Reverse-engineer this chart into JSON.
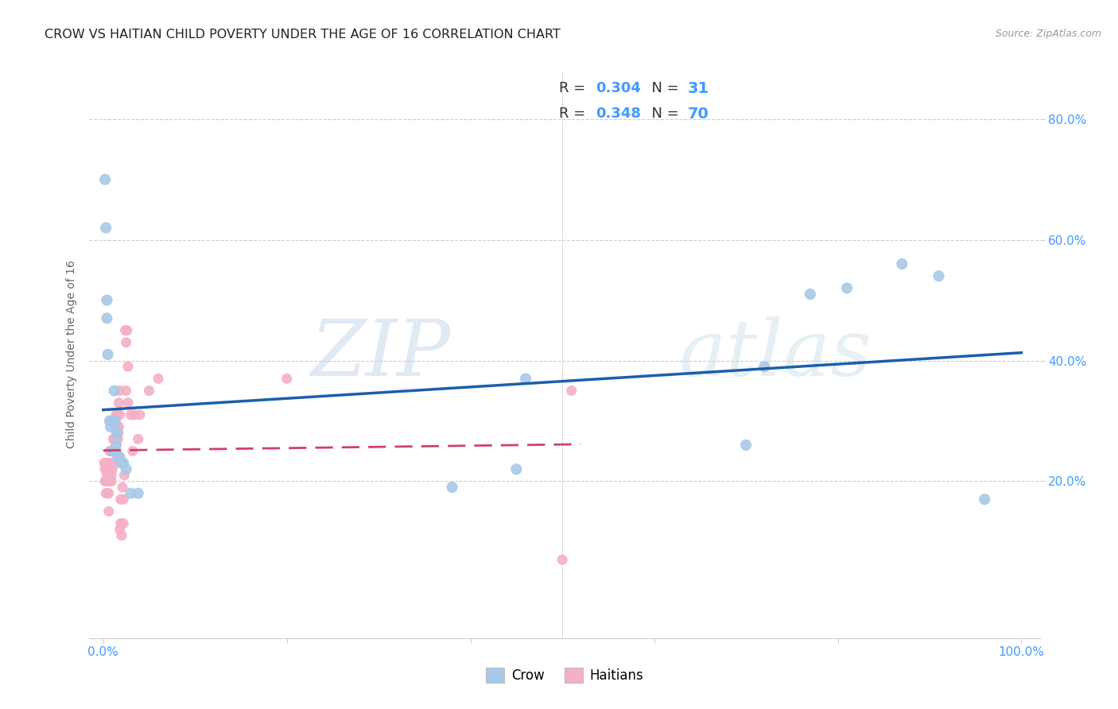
{
  "title": "CROW VS HAITIAN CHILD POVERTY UNDER THE AGE OF 16 CORRELATION CHART",
  "source": "Source: ZipAtlas.com",
  "ylabel": "Child Poverty Under the Age of 16",
  "crow_R": "0.304",
  "crow_N": "31",
  "haitian_R": "0.348",
  "haitian_N": "70",
  "crow_color": "#a8c8e8",
  "haitian_color": "#f5b0c5",
  "crow_line_color": "#1a5faa",
  "haitian_line_color": "#d04070",
  "crow_points": [
    [
      0.002,
      0.7
    ],
    [
      0.003,
      0.62
    ],
    [
      0.004,
      0.5
    ],
    [
      0.004,
      0.47
    ],
    [
      0.005,
      0.41
    ],
    [
      0.007,
      0.3
    ],
    [
      0.008,
      0.29
    ],
    [
      0.01,
      0.3
    ],
    [
      0.01,
      0.25
    ],
    [
      0.012,
      0.35
    ],
    [
      0.013,
      0.3
    ],
    [
      0.014,
      0.26
    ],
    [
      0.015,
      0.28
    ],
    [
      0.016,
      0.28
    ],
    [
      0.016,
      0.24
    ],
    [
      0.018,
      0.24
    ],
    [
      0.02,
      0.23
    ],
    [
      0.022,
      0.23
    ],
    [
      0.025,
      0.22
    ],
    [
      0.03,
      0.18
    ],
    [
      0.038,
      0.18
    ],
    [
      0.38,
      0.19
    ],
    [
      0.45,
      0.22
    ],
    [
      0.46,
      0.37
    ],
    [
      0.7,
      0.26
    ],
    [
      0.72,
      0.39
    ],
    [
      0.77,
      0.51
    ],
    [
      0.81,
      0.52
    ],
    [
      0.87,
      0.56
    ],
    [
      0.91,
      0.54
    ],
    [
      0.96,
      0.17
    ]
  ],
  "haitian_points": [
    [
      0.001,
      0.23
    ],
    [
      0.002,
      0.2
    ],
    [
      0.002,
      0.22
    ],
    [
      0.003,
      0.2
    ],
    [
      0.003,
      0.18
    ],
    [
      0.003,
      0.23
    ],
    [
      0.004,
      0.23
    ],
    [
      0.004,
      0.22
    ],
    [
      0.004,
      0.21
    ],
    [
      0.005,
      0.23
    ],
    [
      0.005,
      0.2
    ],
    [
      0.005,
      0.18
    ],
    [
      0.006,
      0.23
    ],
    [
      0.006,
      0.22
    ],
    [
      0.006,
      0.18
    ],
    [
      0.006,
      0.15
    ],
    [
      0.007,
      0.23
    ],
    [
      0.007,
      0.22
    ],
    [
      0.007,
      0.2
    ],
    [
      0.007,
      0.25
    ],
    [
      0.008,
      0.23
    ],
    [
      0.008,
      0.22
    ],
    [
      0.008,
      0.25
    ],
    [
      0.009,
      0.21
    ],
    [
      0.009,
      0.2
    ],
    [
      0.01,
      0.25
    ],
    [
      0.01,
      0.22
    ],
    [
      0.011,
      0.27
    ],
    [
      0.011,
      0.25
    ],
    [
      0.012,
      0.27
    ],
    [
      0.012,
      0.25
    ],
    [
      0.012,
      0.23
    ],
    [
      0.013,
      0.29
    ],
    [
      0.013,
      0.27
    ],
    [
      0.014,
      0.31
    ],
    [
      0.014,
      0.25
    ],
    [
      0.015,
      0.31
    ],
    [
      0.015,
      0.29
    ],
    [
      0.015,
      0.27
    ],
    [
      0.016,
      0.29
    ],
    [
      0.016,
      0.27
    ],
    [
      0.017,
      0.33
    ],
    [
      0.017,
      0.29
    ],
    [
      0.018,
      0.35
    ],
    [
      0.018,
      0.31
    ],
    [
      0.018,
      0.12
    ],
    [
      0.019,
      0.17
    ],
    [
      0.019,
      0.13
    ],
    [
      0.02,
      0.13
    ],
    [
      0.02,
      0.11
    ],
    [
      0.021,
      0.19
    ],
    [
      0.022,
      0.17
    ],
    [
      0.022,
      0.13
    ],
    [
      0.023,
      0.21
    ],
    [
      0.024,
      0.45
    ],
    [
      0.025,
      0.43
    ],
    [
      0.025,
      0.35
    ],
    [
      0.026,
      0.45
    ],
    [
      0.027,
      0.39
    ],
    [
      0.027,
      0.33
    ],
    [
      0.03,
      0.31
    ],
    [
      0.032,
      0.25
    ],
    [
      0.034,
      0.31
    ],
    [
      0.038,
      0.27
    ],
    [
      0.04,
      0.31
    ],
    [
      0.05,
      0.35
    ],
    [
      0.06,
      0.37
    ],
    [
      0.2,
      0.37
    ],
    [
      0.5,
      0.07
    ],
    [
      0.51,
      0.35
    ]
  ],
  "xlim": [
    -0.015,
    1.02
  ],
  "ylim": [
    -0.06,
    0.88
  ],
  "xtick_positions": [
    0.0,
    0.2,
    0.4,
    0.6,
    0.8,
    1.0
  ],
  "xtick_labels": [
    "0.0%",
    "",
    "",
    "",
    "",
    "100.0%"
  ],
  "ytick_positions": [
    0.2,
    0.4,
    0.6,
    0.8
  ],
  "ytick_labels": [
    "20.0%",
    "40.0%",
    "60.0%",
    "80.0%"
  ],
  "grid_color": "#cccccc",
  "bg_color": "#ffffff",
  "watermark_zip": "ZIP",
  "watermark_atlas": "atlas",
  "title_fontsize": 11.5,
  "tick_color": "#4499ff",
  "tick_fontsize": 11
}
